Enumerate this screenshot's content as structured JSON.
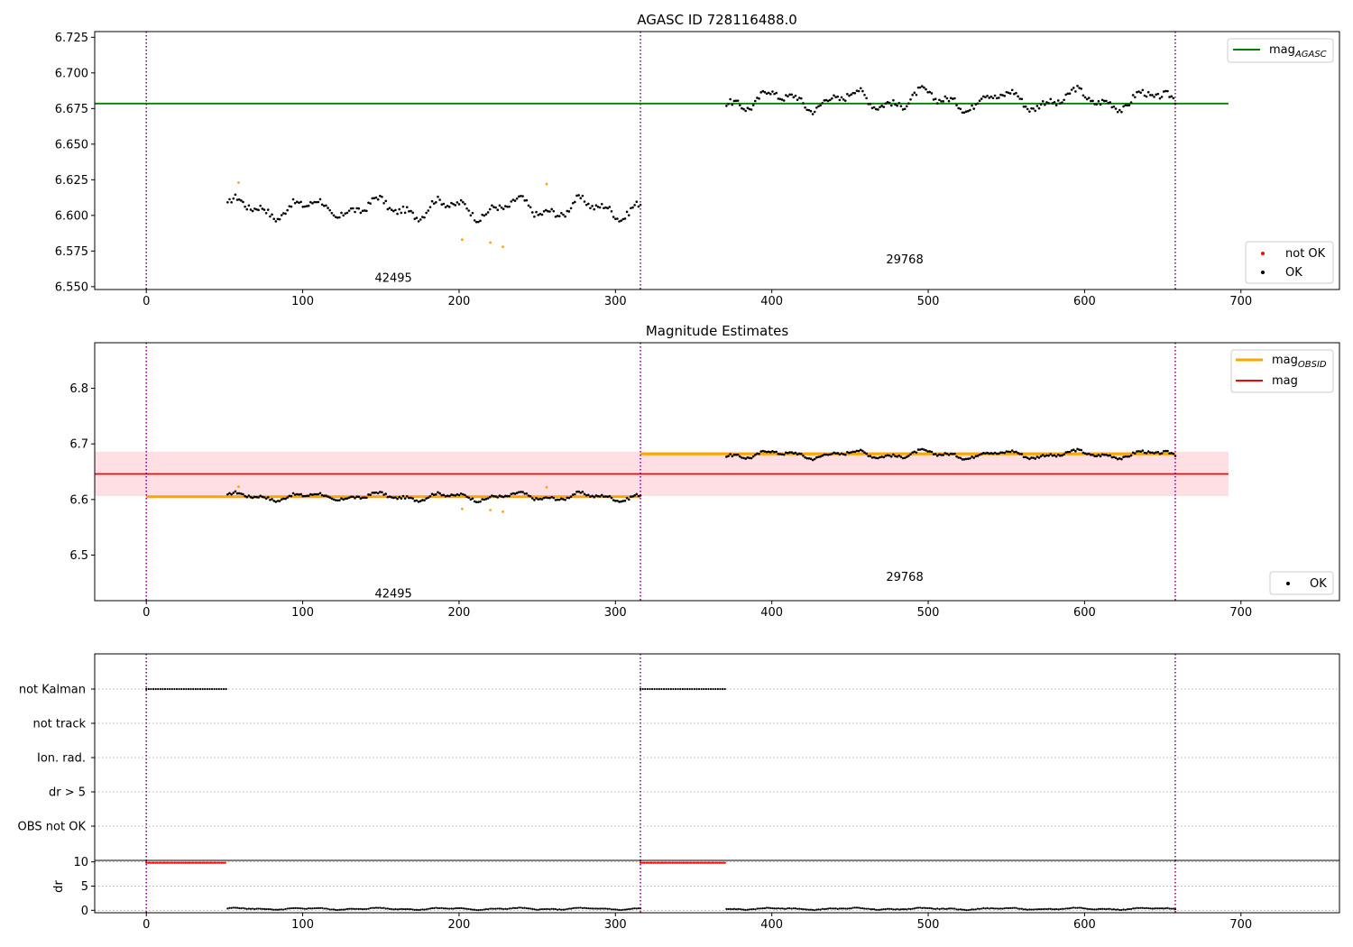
{
  "figure": {
    "background": "#ffffff"
  },
  "chart_data": [
    {
      "type": "scatter",
      "id": "agasc",
      "title": "AGASC ID 728116488.0",
      "xlim": [
        -33,
        763
      ],
      "ylim": [
        6.548,
        6.729
      ],
      "xticks": [
        0,
        100,
        200,
        300,
        400,
        500,
        600,
        700
      ],
      "yticks": [
        6.55,
        6.575,
        6.6,
        6.625,
        6.65,
        6.675,
        6.7,
        6.725
      ],
      "ytick_labels": [
        "6.550",
        "6.575",
        "6.600",
        "6.625",
        "6.650",
        "6.675",
        "6.700",
        "6.725"
      ],
      "obs_boundaries": [
        0,
        316,
        658
      ],
      "obs_labels": [
        {
          "text": "42495",
          "x": 158,
          "y": 6.556
        },
        {
          "text": "29768",
          "x": 485,
          "y": 6.569
        }
      ],
      "lines": [
        {
          "name_main": "mag",
          "name_sub": "AGASC",
          "y": 6.6785,
          "x": [
            -33,
            692
          ],
          "color": "#008000"
        }
      ],
      "segments": [
        {
          "x_start": 52,
          "x_end": 316,
          "mean": 6.605,
          "amp": 0.009,
          "n": 215
        },
        {
          "x_start": 371,
          "x_end": 658,
          "mean": 6.681,
          "amp": 0.009,
          "n": 235
        }
      ],
      "flagged_points": {
        "x": [
          59,
          202,
          220,
          228,
          256
        ],
        "y": [
          6.623,
          6.583,
          6.581,
          6.578,
          6.622
        ],
        "color": "#ffa500"
      },
      "legends": [
        {
          "position": "top-right",
          "entries": [
            {
              "label_main": "mag",
              "label_sub": "AGASC",
              "marker": "line",
              "color": "#008000"
            }
          ]
        },
        {
          "position": "bottom-right",
          "entries": [
            {
              "label_main": "not OK",
              "label_sub": "",
              "marker": "dot",
              "color": "#ff0000"
            },
            {
              "label_main": "OK",
              "label_sub": "",
              "marker": "dot",
              "color": "#000000"
            }
          ]
        }
      ]
    },
    {
      "type": "scatter",
      "id": "estimates",
      "title": "Magnitude Estimates",
      "xlim": [
        -33,
        763
      ],
      "ylim": [
        6.418,
        6.882
      ],
      "xticks": [
        0,
        100,
        200,
        300,
        400,
        500,
        600,
        700
      ],
      "yticks": [
        6.5,
        6.6,
        6.7,
        6.8
      ],
      "ytick_labels": [
        "6.5",
        "6.6",
        "6.7",
        "6.8"
      ],
      "obs_boundaries": [
        0,
        316,
        658
      ],
      "obs_labels": [
        {
          "text": "42495",
          "x": 158,
          "y": 6.43
        },
        {
          "text": "29768",
          "x": 485,
          "y": 6.46
        }
      ],
      "band": {
        "y_low": 6.606,
        "y_high": 6.686,
        "x": [
          -33,
          692
        ],
        "color": "#ffdfe3"
      },
      "lines": [
        {
          "name_main": "mag",
          "name_sub": "",
          "y": 6.646,
          "x": [
            -33,
            692
          ],
          "color": "#ff0000"
        },
        {
          "name_main": "mag",
          "name_sub": "OBSID",
          "y": 6.605,
          "x": [
            0,
            316
          ],
          "color": "#ffa500"
        },
        {
          "name_main": "",
          "name_sub": "",
          "y": 6.682,
          "x": [
            316,
            658
          ],
          "color": "#ffa500"
        }
      ],
      "segments": [
        {
          "x_start": 52,
          "x_end": 316,
          "mean": 6.605,
          "amp": 0.009,
          "n": 215
        },
        {
          "x_start": 371,
          "x_end": 658,
          "mean": 6.681,
          "amp": 0.009,
          "n": 235
        }
      ],
      "flagged_points": {
        "x": [
          59,
          202,
          220,
          228,
          256
        ],
        "y": [
          6.623,
          6.583,
          6.581,
          6.578,
          6.622
        ],
        "color": "#ffa500"
      },
      "legends": [
        {
          "position": "top-right",
          "entries": [
            {
              "label_main": "mag",
              "label_sub": "OBSID",
              "marker": "line",
              "color": "#ffa500"
            },
            {
              "label_main": "mag",
              "label_sub": "",
              "marker": "line",
              "color": "#ff0000"
            }
          ]
        },
        {
          "position": "bottom-right",
          "entries": [
            {
              "label_main": "OK",
              "label_sub": "",
              "marker": "dot",
              "color": "#000000"
            }
          ]
        }
      ]
    },
    {
      "type": "scatter",
      "id": "flags",
      "title": "",
      "xlim": [
        -33,
        763
      ],
      "obs_boundaries": [
        0,
        316,
        658
      ],
      "categories": [
        "not Kalman",
        "not track",
        "Ion. rad.",
        "dr > 5",
        "OBS not OK"
      ],
      "flag_ranges": [
        {
          "category": "not Kalman",
          "ranges": [
            [
              0,
              51
            ],
            [
              316,
              370
            ]
          ]
        }
      ]
    },
    {
      "type": "scatter",
      "id": "dr",
      "title": "",
      "ylabel": "dr",
      "xlim": [
        -33,
        763
      ],
      "ylim": [
        -0.5,
        10.3
      ],
      "xticks": [
        0,
        100,
        200,
        300,
        400,
        500,
        600,
        700
      ],
      "yticks": [
        0,
        5,
        10
      ],
      "ytick_labels": [
        "0",
        "5",
        "10"
      ],
      "obs_boundaries": [
        0,
        316,
        658
      ],
      "capped_value": 9.8,
      "capped_ranges": [
        [
          0,
          51
        ],
        [
          316,
          370
        ]
      ],
      "segments": [
        {
          "x_start": 52,
          "x_end": 316,
          "level": 0.3,
          "amp": 0.25,
          "n": 215
        },
        {
          "x_start": 371,
          "x_end": 658,
          "level": 0.3,
          "amp": 0.25,
          "n": 235
        }
      ]
    }
  ]
}
